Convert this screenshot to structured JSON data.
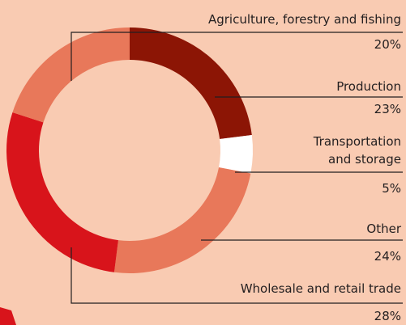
{
  "chart_data": {
    "type": "donut",
    "categories": [
      "Production",
      "Transportation and storage",
      "Other",
      "Wholesale and retail trade",
      "Agriculture, forestry and fishing"
    ],
    "values": [
      23,
      5,
      24,
      28,
      20
    ],
    "value_labels": [
      "23%",
      "5%",
      "24%",
      "28%",
      "20%"
    ],
    "colors": [
      "#8c1505",
      "#ffffff",
      "#e8785a",
      "#d8141b",
      "#e8785a"
    ]
  }
}
